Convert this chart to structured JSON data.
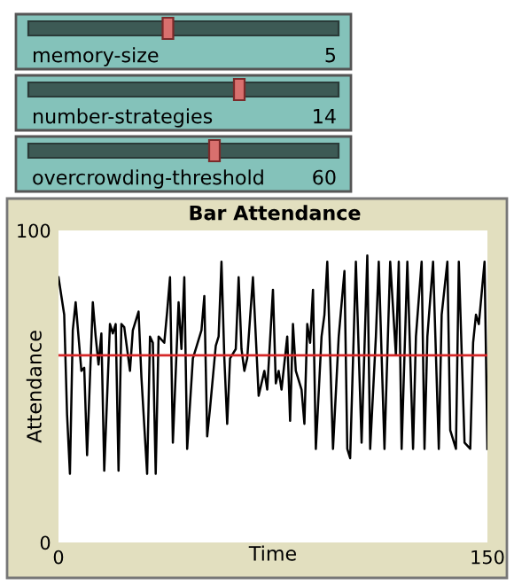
{
  "chart_data": {
    "type": "line",
    "title": "Bar Attendance",
    "xlabel": "Time",
    "ylabel": "Attendance",
    "annotations": [
      "memory-size",
      "5",
      "number-strategies",
      "14",
      "overcrowding-threshold",
      "60"
    ],
    "x": [
      0,
      2,
      3,
      4,
      5,
      6,
      8,
      9,
      10,
      12,
      13,
      14,
      15,
      16,
      18,
      19,
      20,
      21,
      22,
      23,
      25,
      26,
      28,
      29,
      31,
      32,
      33,
      34,
      35,
      37,
      38,
      39,
      40,
      42,
      43,
      44,
      45,
      47,
      48,
      50,
      51,
      52,
      53,
      55,
      56,
      57,
      58,
      59,
      60,
      62,
      63,
      64,
      65,
      66,
      68,
      70,
      72,
      73,
      75,
      76,
      77,
      78,
      80,
      81,
      82,
      83,
      85,
      86,
      87,
      88,
      89,
      90,
      92,
      93,
      94,
      96,
      98,
      100,
      101,
      102,
      104,
      106,
      108,
      109,
      111,
      112,
      114,
      116,
      118,
      119,
      120,
      122,
      124,
      125,
      127,
      128,
      129,
      131,
      133,
      134,
      136,
      137,
      139,
      140,
      142,
      144,
      145,
      146,
      147,
      149,
      150
    ],
    "series": [
      {
        "color": "#000000",
        "values": [
          85,
          73,
          41,
          22,
          68,
          77,
          55,
          56,
          28,
          77,
          66,
          57,
          67,
          23,
          70,
          67,
          70,
          23,
          70,
          69,
          55,
          68,
          74,
          53,
          22,
          66,
          64,
          22,
          66,
          64,
          74,
          85,
          32,
          77,
          62,
          85,
          30,
          59,
          62,
          68,
          79,
          34,
          43,
          63,
          66,
          90,
          59,
          38,
          59,
          62,
          85,
          62,
          55,
          59,
          85,
          47,
          55,
          49,
          81,
          51,
          55,
          49,
          66,
          39,
          70,
          55,
          49,
          38,
          70,
          64,
          81,
          30,
          66,
          73,
          90,
          30,
          66,
          87,
          30,
          27,
          90,
          32,
          92,
          30,
          66,
          90,
          30,
          90,
          60,
          90,
          30,
          90,
          30,
          66,
          90,
          30,
          66,
          90,
          30,
          73,
          90,
          36,
          30,
          90,
          32,
          30,
          64,
          73,
          70,
          90,
          30
        ]
      }
    ],
    "ref_lines": [
      {
        "axis": "y",
        "value": 60,
        "color": "#d62728"
      }
    ],
    "xlim": [
      0,
      150
    ],
    "xticks": [
      0,
      150
    ],
    "ylim": [
      0,
      100
    ],
    "yticks": [
      0,
      100
    ],
    "grid": false,
    "legend": false
  }
}
